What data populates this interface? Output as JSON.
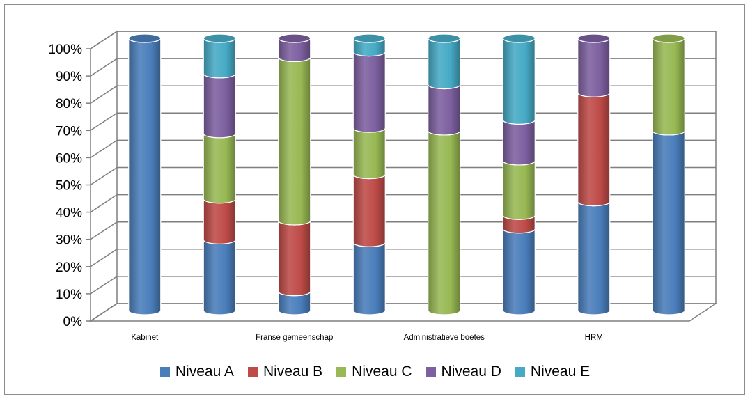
{
  "chart_data": {
    "type": "bar",
    "stacked": "percent",
    "style": "3d-cylinder",
    "categories": [
      "Kabinet",
      "",
      "Franse gemeenschap",
      "",
      "Administratieve boetes",
      "",
      "HRM",
      ""
    ],
    "series": [
      {
        "name": "Niveau A",
        "color": "#4a7ebb",
        "values": [
          100,
          26,
          7,
          25,
          0,
          30,
          40,
          66
        ]
      },
      {
        "name": "Niveau B",
        "color": "#be4b48",
        "values": [
          0,
          15,
          26,
          25,
          0,
          5,
          40,
          0
        ]
      },
      {
        "name": "Niveau C",
        "color": "#98b954",
        "values": [
          0,
          24,
          60,
          17,
          66,
          20,
          0,
          34
        ]
      },
      {
        "name": "Niveau D",
        "color": "#7d60a0",
        "values": [
          0,
          22,
          7,
          28,
          17,
          15,
          20,
          0
        ]
      },
      {
        "name": "Niveau E",
        "color": "#46aac5",
        "values": [
          0,
          13,
          0,
          5,
          17,
          30,
          0,
          0
        ]
      }
    ],
    "yticks": [
      "0%",
      "10%",
      "20%",
      "30%",
      "40%",
      "50%",
      "60%",
      "70%",
      "80%",
      "90%",
      "100%"
    ],
    "ylim": [
      0,
      100
    ],
    "grid": true,
    "legend": "bottom"
  }
}
